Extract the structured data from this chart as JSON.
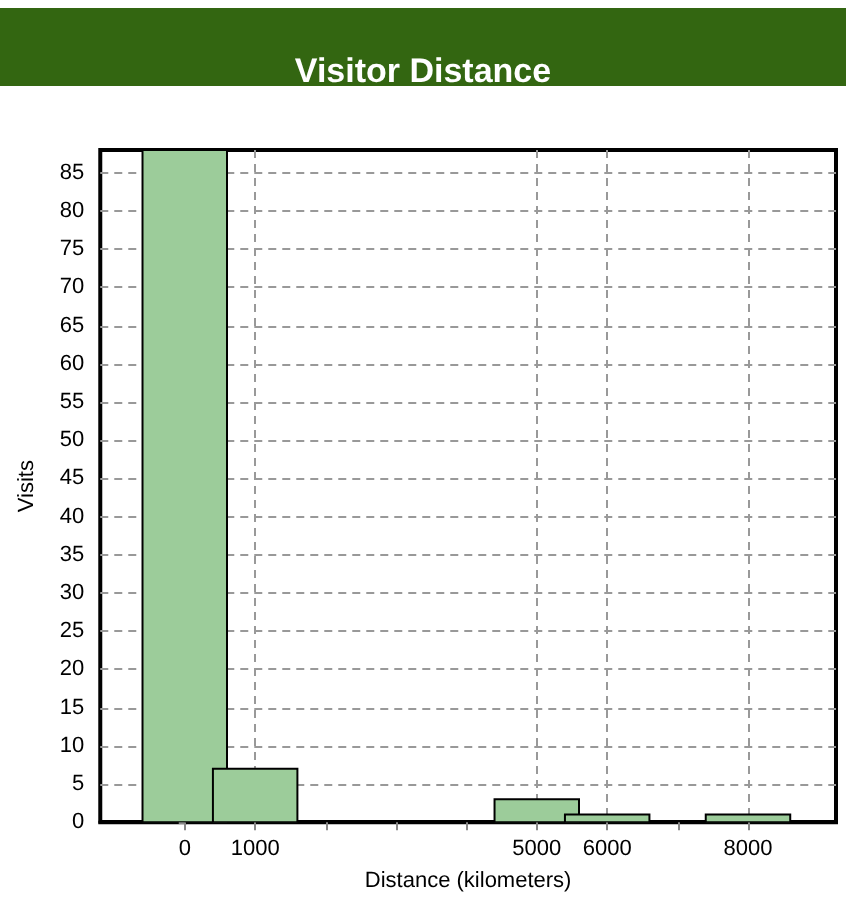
{
  "chart_data": {
    "type": "bar",
    "title": "Visitor Distance",
    "xlabel": "Distance (kilometers)",
    "ylabel": "Visits",
    "x": [
      0,
      1000,
      5000,
      6000,
      8000
    ],
    "values": [
      88,
      7,
      3,
      1,
      1
    ],
    "color": "#9ccc9a",
    "xlim": [
      -1200,
      9250
    ],
    "xticks": [
      0,
      1000,
      {
        "value": 2000,
        "label": null
      },
      {
        "value": 3000,
        "label": null
      },
      {
        "value": 4000,
        "label": null
      },
      5000,
      6000,
      {
        "value": 7000,
        "label": null
      },
      8000
    ],
    "ylim": [
      0,
      88
    ],
    "yticks": [
      0,
      5,
      10,
      15,
      20,
      25,
      30,
      35,
      40,
      45,
      50,
      55,
      60,
      65,
      70,
      75,
      80,
      85
    ],
    "grid": true
  }
}
